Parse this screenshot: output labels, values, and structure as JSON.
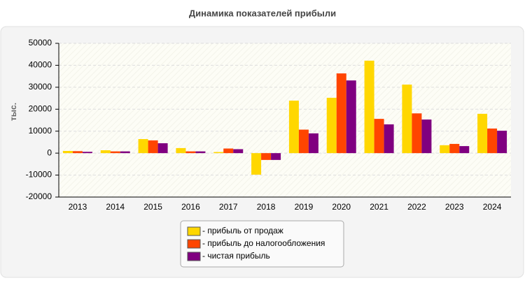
{
  "chart_data": {
    "type": "bar",
    "title": "Динамика показателей прибыли",
    "y_label": "тыс.",
    "categories": [
      "2013",
      "2014",
      "2015",
      "2016",
      "2017",
      "2018",
      "2019",
      "2020",
      "2021",
      "2022",
      "2023",
      "2024"
    ],
    "series": [
      {
        "name": "- прибыль от продаж",
        "color": "#ffd700",
        "values": [
          1000,
          1300,
          6400,
          2300,
          500,
          -9800,
          23900,
          25200,
          42100,
          31200,
          3600,
          17900
        ]
      },
      {
        "name": "- прибыль до налогообложения",
        "color": "#ff4500",
        "values": [
          900,
          800,
          5800,
          800,
          2100,
          -3100,
          10700,
          36300,
          15600,
          18100,
          4200,
          11200
        ]
      },
      {
        "name": "- чистая прибыль",
        "color": "#800080",
        "values": [
          600,
          800,
          4500,
          800,
          1800,
          -3100,
          9000,
          33100,
          13100,
          15300,
          3200,
          10200
        ]
      }
    ],
    "ylim": [
      -20000,
      50000
    ],
    "yticks": [
      -20000,
      -10000,
      0,
      10000,
      20000,
      30000,
      40000,
      50000
    ],
    "grid": true
  }
}
